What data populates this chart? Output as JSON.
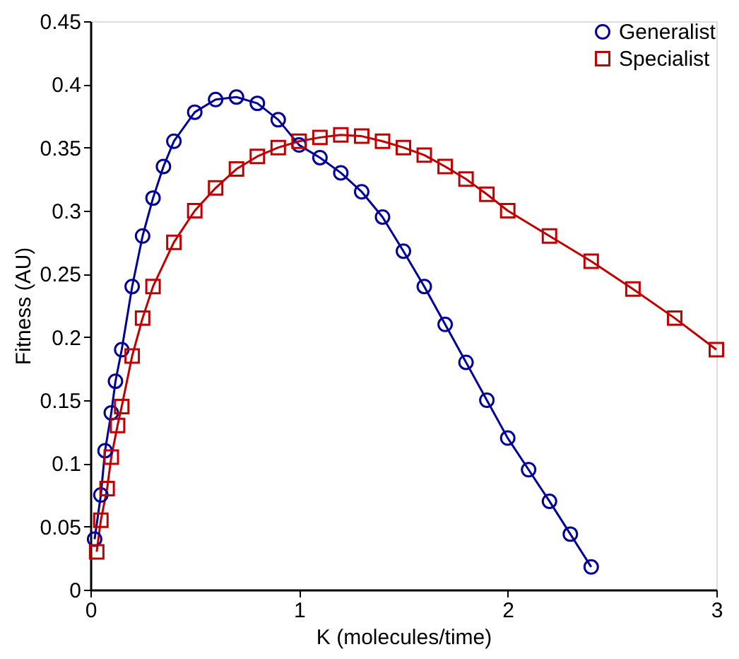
{
  "chart_data": {
    "type": "line",
    "xlabel": "K (molecules/time)",
    "ylabel": "Fitness (AU)",
    "xlim": [
      0,
      3
    ],
    "xticks": [
      0,
      1,
      2,
      3
    ],
    "ylim": [
      0,
      0.45
    ],
    "yticks": [
      0,
      0.05,
      0.1,
      0.15,
      0.2,
      0.25,
      0.3,
      0.35,
      0.4,
      0.45
    ],
    "grid": false,
    "legend": "top right",
    "line_style": "solid",
    "series": [
      {
        "name": "Generalist",
        "color": "#000099",
        "marker": "circle",
        "x": [
          0.02,
          0.05,
          0.07,
          0.1,
          0.12,
          0.15,
          0.2,
          0.25,
          0.3,
          0.35,
          0.4,
          0.5,
          0.6,
          0.7,
          0.8,
          0.9,
          1.0,
          1.1,
          1.2,
          1.3,
          1.4,
          1.5,
          1.6,
          1.7,
          1.8,
          1.9,
          2.0,
          2.1,
          2.2,
          2.3,
          2.4
        ],
        "values": [
          0.04,
          0.075,
          0.11,
          0.14,
          0.165,
          0.19,
          0.24,
          0.28,
          0.31,
          0.335,
          0.355,
          0.378,
          0.388,
          0.39,
          0.385,
          0.372,
          0.352,
          0.342,
          0.33,
          0.315,
          0.295,
          0.268,
          0.24,
          0.21,
          0.18,
          0.15,
          0.12,
          0.095,
          0.07,
          0.044,
          0.018
        ]
      },
      {
        "name": "Specialist",
        "color": "#c00000",
        "marker": "square",
        "x": [
          0.03,
          0.05,
          0.08,
          0.1,
          0.13,
          0.15,
          0.2,
          0.25,
          0.3,
          0.4,
          0.5,
          0.6,
          0.7,
          0.8,
          0.9,
          1.0,
          1.1,
          1.2,
          1.3,
          1.4,
          1.5,
          1.6,
          1.7,
          1.8,
          1.9,
          2.0,
          2.2,
          2.4,
          2.6,
          2.8,
          3.0
        ],
        "values": [
          0.03,
          0.055,
          0.08,
          0.105,
          0.13,
          0.145,
          0.185,
          0.215,
          0.24,
          0.275,
          0.3,
          0.318,
          0.333,
          0.343,
          0.35,
          0.355,
          0.358,
          0.36,
          0.359,
          0.355,
          0.35,
          0.344,
          0.335,
          0.325,
          0.313,
          0.3,
          0.28,
          0.26,
          0.238,
          0.215,
          0.19
        ]
      }
    ]
  }
}
